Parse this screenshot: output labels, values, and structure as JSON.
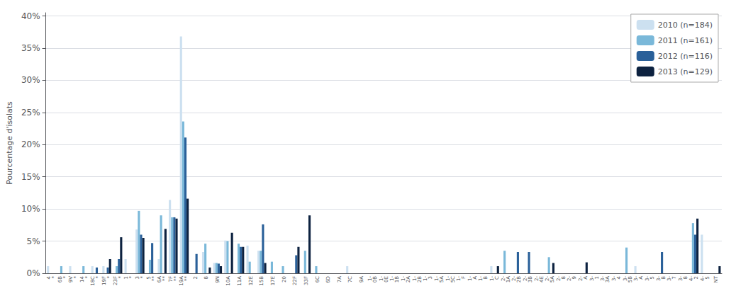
{
  "chart_data": {
    "type": "bar",
    "ylabel": "Pourcentage d'isolats",
    "categories": [
      "4\n*",
      "6B\n*",
      "9V\n*",
      "14\n*",
      "18C\n*",
      "19F\n*",
      "23F\n*",
      "1\n*",
      "3\n*",
      "5\n**",
      "6A\n**",
      "7F\n**",
      "19A\n**",
      "2",
      "8",
      "9N",
      "10A",
      "11A",
      "12E",
      "15B",
      "17E",
      "20",
      "22F",
      "33F",
      "6C",
      "6D",
      "7A",
      "7C",
      "9A",
      "1-\n0B",
      "1-\n0E",
      "1-\n1B",
      "1-\n2A",
      "1-\n2B",
      "1-\n3",
      "1-\n5A",
      "1-\n5C",
      "1-\nF",
      "1-\nA",
      "1-\nB",
      "1-\nC",
      "2-\n1A",
      "2-\n2B",
      "2-\n3B",
      "2-\n4E",
      "2-\n5A",
      "2-\n8",
      "2-\n9",
      "2-\nA",
      "3-\n1",
      "3-\n3A",
      "3-\n4",
      "3-\n5B",
      "3-\nA",
      "3-\n5",
      "3-\nB",
      "3-\n7",
      "3-\n8",
      "4-\n2",
      "4-\n5",
      "NT"
    ],
    "series": [
      {
        "name": "2010 (n=184)",
        "color": "#cce0f0",
        "values": [
          0.011,
          0.0,
          0.011,
          0.0,
          0.011,
          0.011,
          0.0,
          0.022,
          0.068,
          0.0,
          0.022,
          0.114,
          0.368,
          0.0,
          0.033,
          0.016,
          0.051,
          0.0,
          0.043,
          0.035,
          0.0,
          0.0,
          0.0,
          0.0,
          0.0,
          0.0,
          0.0,
          0.011,
          0.0,
          0.0,
          0.0,
          0.0,
          0.0,
          0.0,
          0.0,
          0.0,
          0.0,
          0.0,
          0.0,
          0.0,
          0.011,
          0.0,
          0.0,
          0.0,
          0.0,
          0.0,
          0.0,
          0.0,
          0.0,
          0.0,
          0.0,
          0.0,
          0.0,
          0.011,
          0.0,
          0.0,
          0.0,
          0.0,
          0.0,
          0.06,
          0.0
        ]
      },
      {
        "name": "2011 (n=161)",
        "color": "#7ab8d9",
        "values": [
          0.0,
          0.011,
          0.0,
          0.011,
          0.0,
          0.0,
          0.011,
          0.0,
          0.097,
          0.021,
          0.09,
          0.087,
          0.236,
          0.0,
          0.046,
          0.016,
          0.05,
          0.046,
          0.018,
          0.035,
          0.018,
          0.011,
          0.0,
          0.035,
          0.011,
          0.0,
          0.0,
          0.0,
          0.0,
          0.0,
          0.0,
          0.0,
          0.0,
          0.0,
          0.0,
          0.0,
          0.0,
          0.0,
          0.0,
          0.0,
          0.0,
          0.035,
          0.0,
          0.0,
          0.0,
          0.025,
          0.0,
          0.0,
          0.0,
          0.0,
          0.0,
          0.0,
          0.04,
          0.0,
          0.0,
          0.0,
          0.0,
          0.0,
          0.078,
          0.0,
          0.0
        ]
      },
      {
        "name": "2012 (n=116)",
        "color": "#2a6099",
        "values": [
          0.0,
          0.0,
          0.0,
          0.0,
          0.009,
          0.009,
          0.022,
          0.0,
          0.06,
          0.047,
          0.0,
          0.087,
          0.211,
          0.03,
          0.0,
          0.015,
          0.0,
          0.041,
          0.0,
          0.076,
          0.0,
          0.0,
          0.028,
          0.0,
          0.0,
          0.0,
          0.0,
          0.0,
          0.0,
          0.0,
          0.0,
          0.0,
          0.0,
          0.0,
          0.0,
          0.0,
          0.0,
          0.0,
          0.0,
          0.0,
          0.0,
          0.0,
          0.033,
          0.033,
          0.0,
          0.0,
          0.0,
          0.0,
          0.0,
          0.0,
          0.0,
          0.0,
          0.0,
          0.0,
          0.0,
          0.033,
          0.0,
          0.0,
          0.06,
          0.0,
          0.0
        ]
      },
      {
        "name": "2013 (n=129)",
        "color": "#0d2240",
        "values": [
          0.0,
          0.0,
          0.0,
          0.0,
          0.0,
          0.022,
          0.056,
          0.0,
          0.055,
          0.0,
          0.069,
          0.085,
          0.116,
          0.0,
          0.009,
          0.011,
          0.063,
          0.041,
          0.0,
          0.016,
          0.0,
          0.0,
          0.041,
          0.09,
          0.0,
          0.0,
          0.0,
          0.0,
          0.0,
          0.0,
          0.0,
          0.0,
          0.0,
          0.0,
          0.0,
          0.0,
          0.0,
          0.0,
          0.0,
          0.0,
          0.011,
          0.0,
          0.0,
          0.0,
          0.0,
          0.016,
          0.0,
          0.0,
          0.017,
          0.0,
          0.0,
          0.0,
          0.0,
          0.0,
          0.0,
          0.0,
          0.0,
          0.0,
          0.085,
          0.0,
          0.011
        ]
      }
    ],
    "ylim": [
      0,
      0.405
    ],
    "yticks": [
      {
        "value": 0.0,
        "label": "0%"
      },
      {
        "value": 0.05,
        "label": "5%"
      },
      {
        "value": 0.1,
        "label": "10%"
      },
      {
        "value": 0.15,
        "label": "15%"
      },
      {
        "value": 0.2,
        "label": "20%"
      },
      {
        "value": 0.25,
        "label": "25%"
      },
      {
        "value": 0.3,
        "label": "30%"
      },
      {
        "value": 0.35,
        "label": "35%"
      },
      {
        "value": 0.4,
        "label": "40%"
      }
    ],
    "grid": true,
    "legend": "upper right"
  }
}
